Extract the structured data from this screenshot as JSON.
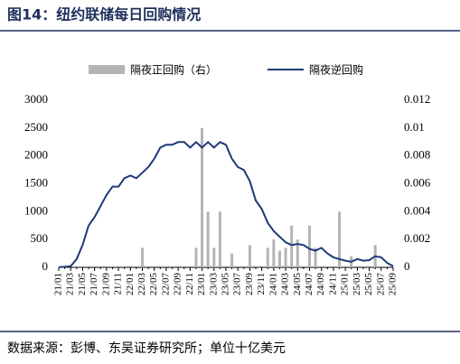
{
  "chart_data": {
    "type": "bar-line",
    "title": "图14：纽约联储每日回购情况",
    "source": "数据来源：彭博、东吴证券研究所；单位十亿美元",
    "categories": [
      "21/01",
      null,
      "21/03",
      null,
      "21/05",
      null,
      "21/07",
      null,
      "21/09",
      null,
      "21/11",
      null,
      "22/01",
      null,
      "22/03",
      null,
      "22/05",
      null,
      "22/07",
      null,
      "22/09",
      null,
      "22/11",
      null,
      "23/01",
      null,
      "23/03",
      null,
      "23/05",
      null,
      "23/07",
      null,
      "23/09",
      null,
      "23/11",
      null,
      "24/01",
      null,
      "24/03",
      null,
      "24/05",
      null,
      "24/07",
      null,
      "24/09",
      null,
      "24/11",
      null,
      "25/01",
      null,
      "25/03",
      null,
      "25/05",
      null,
      "25/07",
      null,
      "25/09"
    ],
    "series": [
      {
        "name": "隔夜正回购（右）",
        "color": "#b4b4b4",
        "axis": "y2",
        "kind": "bar",
        "values": [
          null,
          null,
          null,
          null,
          null,
          null,
          null,
          null,
          null,
          null,
          null,
          null,
          null,
          null,
          0.0014,
          null,
          null,
          null,
          null,
          null,
          null,
          null,
          null,
          0.0014,
          0.01,
          0.004,
          0.0014,
          0.004,
          null,
          0.001,
          null,
          null,
          0.0016,
          null,
          null,
          0.0014,
          0.002,
          0.0012,
          0.0014,
          0.003,
          0.002,
          null,
          0.003,
          0.0014,
          null,
          null,
          null,
          0.004,
          null,
          0.0008,
          null,
          null,
          null,
          0.0016,
          null,
          null,
          null
        ]
      },
      {
        "name": "隔夜逆回购",
        "color": "#1f3a78",
        "kind": "line",
        "values": [
          5,
          10,
          20,
          150,
          400,
          750,
          900,
          1100,
          1300,
          1450,
          1450,
          1600,
          1650,
          1600,
          1700,
          1800,
          1950,
          2150,
          2200,
          2200,
          2250,
          2250,
          2150,
          2250,
          2150,
          2250,
          2150,
          2250,
          2200,
          1950,
          1800,
          1750,
          1550,
          1200,
          1050,
          800,
          650,
          550,
          450,
          400,
          420,
          400,
          330,
          300,
          350,
          250,
          180,
          150,
          120,
          100,
          150,
          120,
          130,
          200,
          180,
          80,
          20
        ]
      }
    ],
    "ylim": [
      0,
      3000
    ],
    "yticks": [
      0,
      500,
      1000,
      1500,
      2000,
      2500,
      3000
    ],
    "y2lim": [
      0,
      0.012
    ],
    "y2ticks": [
      0,
      0.002,
      0.004,
      0.006,
      0.008,
      0.01,
      0.012
    ]
  }
}
